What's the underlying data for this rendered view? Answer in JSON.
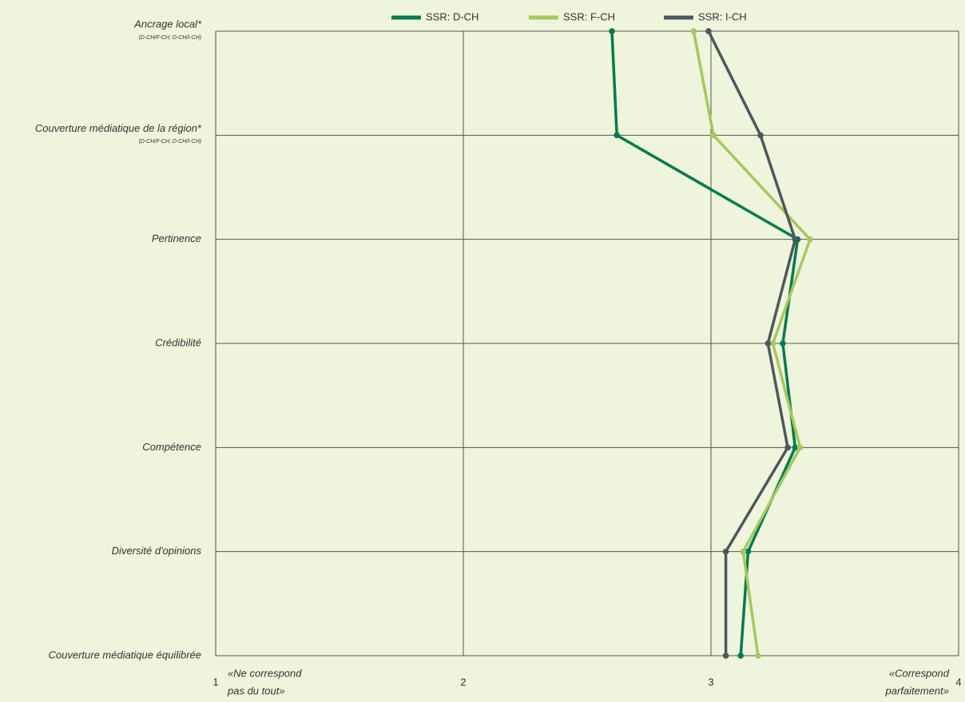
{
  "chart_data": {
    "type": "line",
    "orientation": "horizontal",
    "categories": [
      "Ancrage local*",
      "Couverture médiatique de la région*",
      "Pertinence",
      "Crédibilité",
      "Compétence",
      "Diversité d'opinions",
      "Couverture médiatique équilibrée"
    ],
    "category_notes": [
      "(D-CH/F-CH; D-CH/I-CH)",
      "(D-CH/F-CH; D-CH/I-CH)",
      null,
      null,
      null,
      null,
      null
    ],
    "series": [
      {
        "name": "SSR: D-CH",
        "color": "#007a50",
        "values": [
          2.6,
          2.62,
          3.35,
          3.29,
          3.34,
          3.15,
          3.12
        ]
      },
      {
        "name": "SSR: F-CH",
        "color": "#a5c95c",
        "values": [
          2.93,
          3.01,
          3.4,
          3.25,
          3.36,
          3.13,
          3.19
        ]
      },
      {
        "name": "SSR: I-CH",
        "color": "#4d575c",
        "values": [
          2.99,
          3.2,
          3.34,
          3.23,
          3.31,
          3.06,
          3.06
        ]
      }
    ],
    "xlim": [
      1,
      4
    ],
    "xticks": [
      1,
      2,
      3,
      4
    ],
    "grid": true,
    "legend": "top",
    "annotations": [
      [
        "«Ne correspond",
        "pas du tout»"
      ],
      [
        "«Correspond",
        "parfaitement»"
      ]
    ]
  }
}
